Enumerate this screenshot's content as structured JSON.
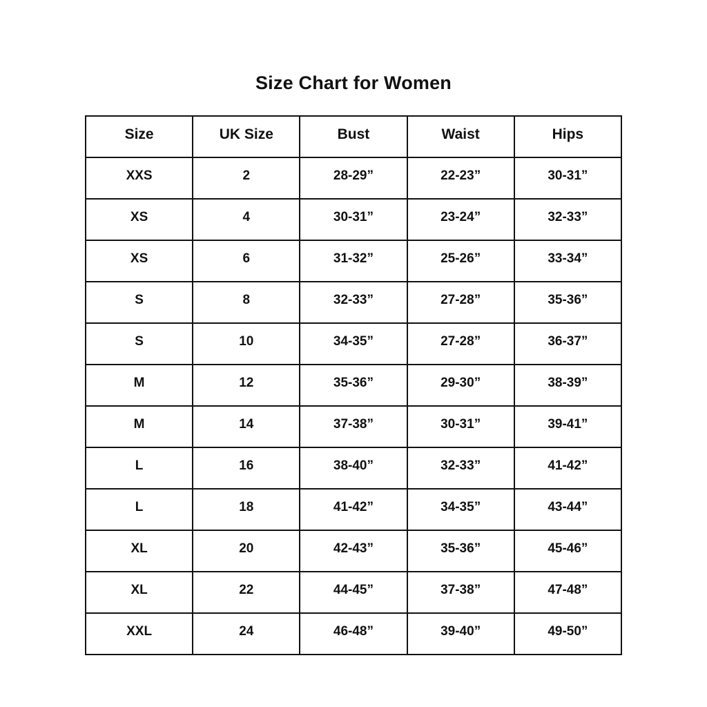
{
  "page": {
    "title": "Size Chart for Women"
  },
  "colors": {
    "background": "#ffffff",
    "border": "#111111",
    "text": "#111111"
  },
  "chart_data": {
    "type": "table",
    "title": "Size Chart for Women",
    "columns": [
      "Size",
      "UK Size",
      "Bust",
      "Waist",
      "Hips"
    ],
    "rows": [
      [
        "XXS",
        "2",
        "28-29”",
        "22-23”",
        "30-31”"
      ],
      [
        "XS",
        "4",
        "30-31”",
        "23-24”",
        "32-33”"
      ],
      [
        "XS",
        "6",
        "31-32”",
        "25-26”",
        "33-34”"
      ],
      [
        "S",
        "8",
        "32-33”",
        "27-28”",
        "35-36”"
      ],
      [
        "S",
        "10",
        "34-35”",
        "27-28”",
        "36-37”"
      ],
      [
        "M",
        "12",
        "35-36”",
        "29-30”",
        "38-39”"
      ],
      [
        "M",
        "14",
        "37-38”",
        "30-31”",
        "39-41”"
      ],
      [
        "L",
        "16",
        "38-40”",
        "32-33”",
        "41-42”"
      ],
      [
        "L",
        "18",
        "41-42”",
        "34-35”",
        "43-44”"
      ],
      [
        "XL",
        "20",
        "42-43”",
        "35-36”",
        "45-46”"
      ],
      [
        "XL",
        "22",
        "44-45”",
        "37-38”",
        "47-48”"
      ],
      [
        "XXL",
        "24",
        "46-48”",
        "39-40”",
        "49-50”"
      ]
    ]
  }
}
